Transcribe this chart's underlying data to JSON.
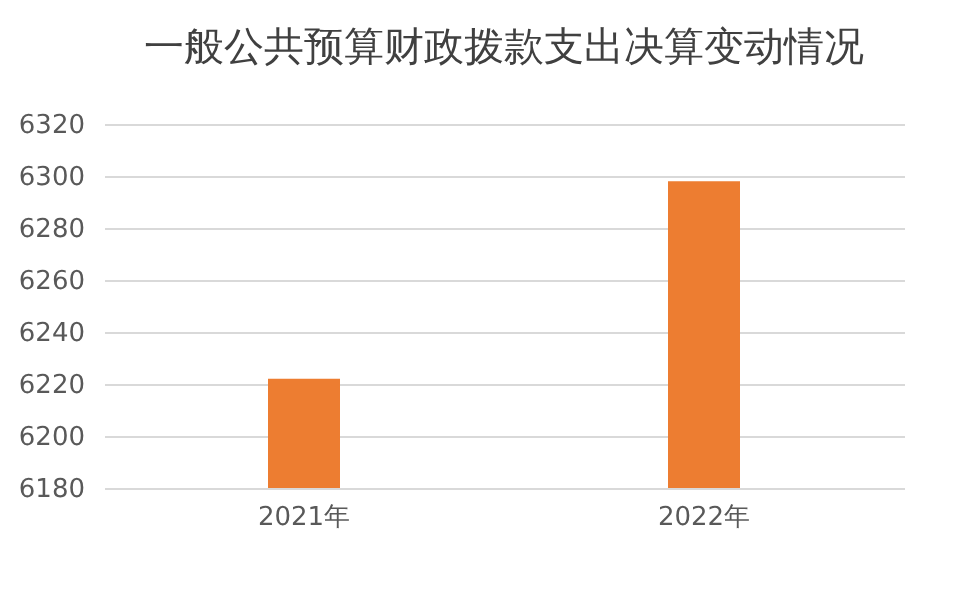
{
  "chart_data": {
    "type": "bar",
    "title": "一般公共预算财政拨款支出决算变动情况",
    "categories": [
      "2021年",
      "2022年"
    ],
    "values": [
      6222,
      6298
    ],
    "color": "#ed7d31",
    "ylim": [
      6180,
      6320
    ],
    "yticks": [
      6180,
      6200,
      6220,
      6240,
      6260,
      6280,
      6300,
      6320
    ],
    "grid": true
  }
}
